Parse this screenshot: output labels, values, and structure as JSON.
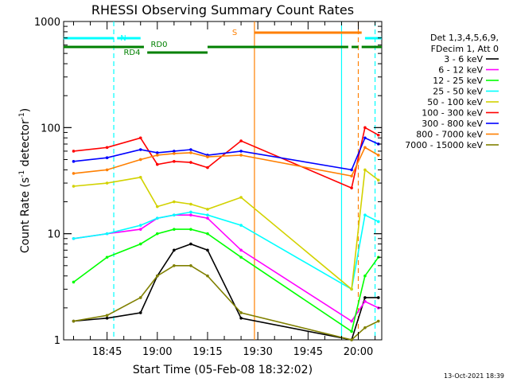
{
  "chart_data": {
    "type": "line",
    "title": "RHESSI Observing Summary Count Rates",
    "xlabel": "Start Time (05-Feb-08 18:32:02)",
    "ylabel": "Count Rate (s⁻¹ detector⁻¹)",
    "ylabel_main": "Count Rate (s",
    "ylabel_sup1": "-1",
    "ylabel_mid": " detector",
    "ylabel_sup2": "-1",
    "ylabel_end": ")",
    "yscale": "log",
    "ylim": [
      1,
      1000
    ],
    "xlim": [
      "18:32:02",
      "20:07:00"
    ],
    "x_ticks": [
      "18:45",
      "19:00",
      "19:15",
      "19:30",
      "19:45",
      "20:00"
    ],
    "y_ticks": [
      "1",
      "10",
      "100",
      "1000"
    ],
    "legend_header": [
      "Det 1,3,4,5,6,9,",
      "FDecim 1, Att 0"
    ],
    "legend_position": "right",
    "footer": "13-Oct-2021 18:39",
    "flags": [
      {
        "label": "N",
        "color": "#00ffff",
        "segments": [
          [
            "18:32",
            "18:47"
          ],
          [
            "18:48",
            "18:55"
          ],
          [
            "20:02",
            "20:07"
          ]
        ]
      },
      {
        "label": "S",
        "color": "#ff7f00",
        "segments": [
          [
            "19:29",
            "20:01"
          ]
        ]
      },
      {
        "label": "RD0",
        "color": "#008000",
        "segments": [
          [
            "18:32",
            "18:56"
          ],
          [
            "19:15",
            "19:57"
          ],
          [
            "19:58",
            "20:00"
          ],
          [
            "20:01",
            "20:07"
          ]
        ]
      },
      {
        "label": "RD4",
        "color": "#008000",
        "segments": [
          [
            "18:57",
            "19:15"
          ]
        ]
      }
    ],
    "vertical_markers": [
      {
        "time": "18:47",
        "color": "#00ffff",
        "style": "dashed"
      },
      {
        "time": "19:29",
        "color": "#ff7f00",
        "style": "solid"
      },
      {
        "time": "19:55",
        "color": "#00ffff",
        "style": "solid"
      },
      {
        "time": "20:00",
        "color": "#ff7f00",
        "style": "dashed"
      },
      {
        "time": "20:05",
        "color": "#00ffff",
        "style": "dashed"
      }
    ],
    "series": [
      {
        "name": "3 - 6 keV",
        "color": "#000000",
        "values": [
          1.5,
          1.6,
          1.8,
          4,
          7,
          8,
          7,
          1.6,
          0.9,
          2.5,
          2.5
        ]
      },
      {
        "name": "6 - 12 keV",
        "color": "#ff00ff",
        "values": [
          9,
          10,
          11,
          14,
          15,
          15,
          14,
          7,
          1.5,
          2.3,
          2
        ]
      },
      {
        "name": "12 - 25 keV",
        "color": "#00ff00",
        "values": [
          3.5,
          6,
          8,
          10,
          11,
          11,
          10,
          6,
          1.2,
          4,
          6
        ]
      },
      {
        "name": "25 - 50 keV",
        "color": "#00ffff",
        "values": [
          9,
          10,
          12,
          14,
          15,
          16,
          15,
          12,
          3,
          15,
          13
        ]
      },
      {
        "name": "50 - 100 keV",
        "color": "#d2d200",
        "values": [
          28,
          30,
          34,
          18,
          20,
          19,
          17,
          22,
          3,
          40,
          32
        ]
      },
      {
        "name": "100 - 300 keV",
        "color": "#ff0000",
        "values": [
          60,
          65,
          80,
          45,
          48,
          47,
          42,
          75,
          27,
          100,
          85
        ]
      },
      {
        "name": "300 - 800 keV",
        "color": "#0000ff",
        "values": [
          48,
          52,
          62,
          58,
          60,
          62,
          55,
          60,
          40,
          80,
          70
        ]
      },
      {
        "name": "800 - 7000 keV",
        "color": "#ff7f00",
        "values": [
          37,
          40,
          50,
          55,
          57,
          58,
          53,
          55,
          35,
          65,
          55
        ]
      },
      {
        "name": "7000 - 15000 keV",
        "color": "#808000",
        "values": [
          1.5,
          1.7,
          2.5,
          4,
          5,
          5,
          4,
          1.8,
          1.0,
          1.3,
          1.5
        ]
      }
    ],
    "x": [
      "18:35",
      "18:45",
      "18:55",
      "19:00",
      "19:05",
      "19:10",
      "19:15",
      "19:25",
      "19:58",
      "20:02",
      "20:06"
    ]
  }
}
